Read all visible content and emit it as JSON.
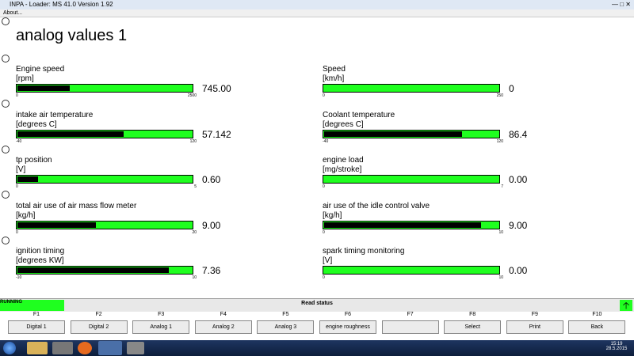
{
  "window": {
    "title": "INPA - Loader:  MS 41.0 Version 1.92",
    "menu": [
      "About..."
    ]
  },
  "screen": {
    "title": "analog values 1",
    "gauges": [
      {
        "label": "Engine speed",
        "unit": "[rpm]",
        "min": 0,
        "max": 2500,
        "value": 745,
        "value_label": "745.00"
      },
      {
        "label": "Speed",
        "unit": "[km/h]",
        "min": 0,
        "max": 250,
        "value": 0
      },
      {
        "label": "intake air temperature",
        "unit": "[degrees C]",
        "min": -40,
        "max": 120,
        "value": 57.142
      },
      {
        "label": "Coolant temperature",
        "unit": "[degrees C]",
        "min": -40,
        "max": 120,
        "value": 86.4
      },
      {
        "label": "tp position",
        "unit": "[V]",
        "min": 0,
        "max": 5,
        "value": 0.6,
        "value_label": "0.60"
      },
      {
        "label": "engine load",
        "unit": "[mg/stroke]",
        "min": 0,
        "max": 7,
        "value": 0,
        "value_label": "0.00"
      },
      {
        "label": "total air use of air mass flow meter",
        "unit": "[kg/h]",
        "min": 0,
        "max": 20,
        "value": 9,
        "value_label": "9.00"
      },
      {
        "label": "air use of the idle control valve",
        "unit": "[kg/h]",
        "min": 0,
        "max": 10,
        "value": 9,
        "value_label": "9.00"
      },
      {
        "label": "ignition timing",
        "unit": "[degrees KW]",
        "min": -10,
        "max": 10,
        "value": 7.36
      },
      {
        "label": "spark timing monitoring",
        "unit": "[V]",
        "min": 0,
        "max": 10,
        "value": 0,
        "value_label": "0.00"
      }
    ]
  },
  "status": {
    "state": "RUNNING",
    "message": "Read status"
  },
  "function_keys": [
    {
      "key": "F1",
      "label": "Digital 1"
    },
    {
      "key": "F2",
      "label": "Digital 2"
    },
    {
      "key": "F3",
      "label": "Analog 1"
    },
    {
      "key": "F4",
      "label": "Analog 2"
    },
    {
      "key": "F5",
      "label": "Analog 3"
    },
    {
      "key": "F6",
      "label": "engine roughness"
    },
    {
      "key": "F7"
    },
    {
      "key": "F8",
      "label": "Select"
    },
    {
      "key": "F9",
      "label": "Print"
    },
    {
      "key": "F10",
      "label": "Back"
    }
  ],
  "taskbar": {
    "time": "15:19",
    "date": "28.5.2015"
  }
}
